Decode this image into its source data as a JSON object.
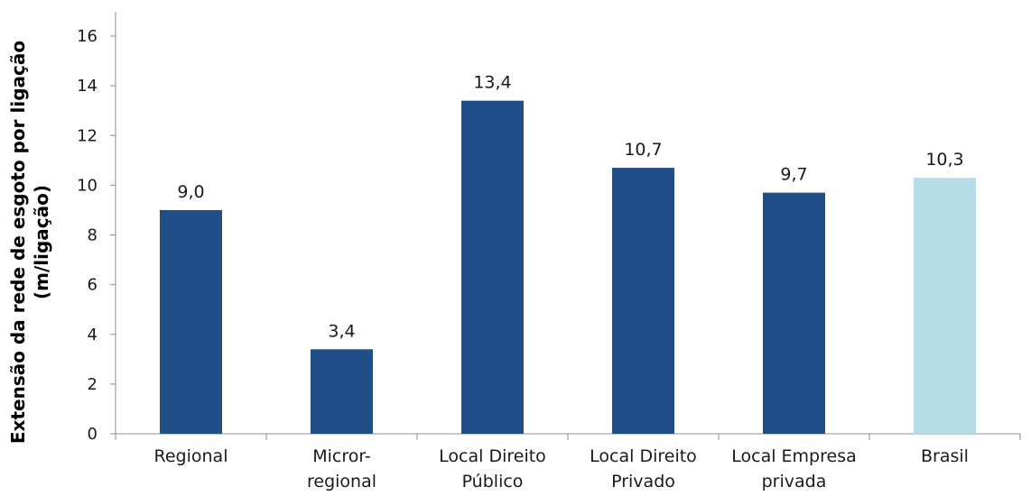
{
  "chart_data": {
    "type": "bar",
    "title": "",
    "xlabel": "",
    "ylabel_lines": [
      "Extensão da rede de esgoto por ligação",
      "(m/ligação)"
    ],
    "ylim": [
      0,
      16
    ],
    "yticks": [
      "0",
      "2",
      "4",
      "6",
      "8",
      "10",
      "12",
      "14",
      "16"
    ],
    "grid": false,
    "categories": [
      [
        "Regional"
      ],
      [
        "Micror-",
        "regional"
      ],
      [
        "Local Direito",
        "Público"
      ],
      [
        "Local Direito",
        "Privado"
      ],
      [
        "Local Empresa",
        "privada"
      ],
      [
        "Brasil"
      ]
    ],
    "values": [
      9.0,
      3.4,
      13.4,
      10.7,
      9.7,
      10.3
    ],
    "value_labels": [
      "9,0",
      "3,4",
      "13,4",
      "10,7",
      "9,7",
      "10,3"
    ],
    "colors": [
      "#1f4e89",
      "#1f4e89",
      "#1f4e89",
      "#1f4e89",
      "#1f4e89",
      "#b7dde8"
    ]
  }
}
